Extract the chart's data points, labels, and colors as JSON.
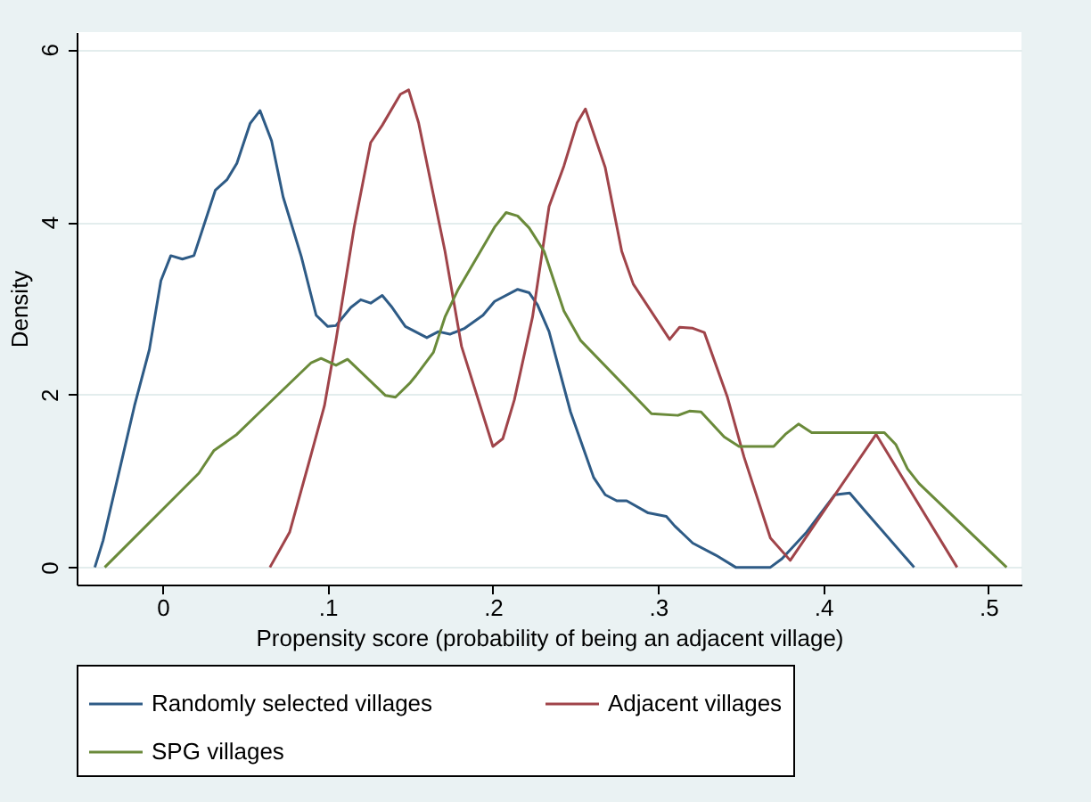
{
  "chart_data": {
    "type": "line",
    "xlabel": "Propensity score (probability of being an adjacent village)",
    "ylabel": "Density",
    "xlim": [
      -0.052,
      0.52
    ],
    "ylim": [
      -0.2,
      6.2
    ],
    "xticks": [
      0,
      {
        "value": 0.1,
        "label": ".1"
      },
      {
        "value": 0.2,
        "label": ".2"
      },
      {
        "value": 0.3,
        "label": ".3"
      },
      {
        "value": 0.4,
        "label": ".4"
      },
      {
        "value": 0.5,
        "label": ".5"
      }
    ],
    "yticks": [
      0,
      2,
      4,
      6
    ],
    "grid": "y",
    "legend": "bottom",
    "line_style": "solid",
    "series": [
      {
        "name": "Randomly selected villages",
        "color": "#2e5b86",
        "x": [
          -0.041,
          -0.036,
          -0.017,
          -0.008,
          -0.001,
          0.005,
          0.012,
          0.019,
          0.032,
          0.039,
          0.045,
          0.053,
          0.059,
          0.066,
          0.073,
          0.084,
          0.093,
          0.1,
          0.105,
          0.114,
          0.12,
          0.126,
          0.133,
          0.139,
          0.147,
          0.16,
          0.167,
          0.174,
          0.183,
          0.194,
          0.201,
          0.215,
          0.222,
          0.227,
          0.234,
          0.247,
          0.261,
          0.268,
          0.275,
          0.281,
          0.294,
          0.305,
          0.31,
          0.321,
          0.335,
          0.347,
          0.368,
          0.375,
          0.39,
          0.407,
          0.416,
          0.425,
          0.455
        ],
        "values": [
          0,
          0.31,
          1.87,
          2.52,
          3.32,
          3.61,
          3.57,
          3.61,
          4.37,
          4.49,
          4.68,
          5.14,
          5.29,
          4.94,
          4.29,
          3.6,
          2.92,
          2.79,
          2.8,
          3.01,
          3.1,
          3.06,
          3.15,
          3.01,
          2.79,
          2.66,
          2.73,
          2.7,
          2.77,
          2.92,
          3.08,
          3.22,
          3.18,
          3.04,
          2.73,
          1.8,
          1.04,
          0.84,
          0.77,
          0.77,
          0.63,
          0.59,
          0.48,
          0.28,
          0.14,
          0,
          0,
          0.1,
          0.41,
          0.84,
          0.86,
          0.66,
          0
        ]
      },
      {
        "name": "Adjacent villages",
        "color": "#a0444a",
        "x": [
          0.065,
          0.07,
          0.077,
          0.089,
          0.098,
          0.105,
          0.116,
          0.126,
          0.133,
          0.144,
          0.149,
          0.155,
          0.171,
          0.181,
          0.2,
          0.206,
          0.213,
          0.224,
          0.234,
          0.243,
          0.251,
          0.256,
          0.268,
          0.278,
          0.285,
          0.307,
          0.313,
          0.321,
          0.328,
          0.342,
          0.352,
          0.368,
          0.38,
          0.432,
          0.481
        ],
        "values": [
          0,
          0.17,
          0.41,
          1.24,
          1.87,
          2.63,
          3.94,
          4.92,
          5.12,
          5.48,
          5.53,
          5.15,
          3.66,
          2.56,
          1.4,
          1.49,
          1.94,
          2.9,
          4.18,
          4.65,
          5.15,
          5.31,
          4.63,
          3.66,
          3.28,
          2.64,
          2.78,
          2.77,
          2.72,
          1.97,
          1.28,
          0.34,
          0.08,
          1.54,
          0
        ]
      },
      {
        "name": "SPG villages",
        "color": "#6a8a3a",
        "x": [
          -0.035,
          0.022,
          0.031,
          0.045,
          0.059,
          0.09,
          0.096,
          0.105,
          0.112,
          0.135,
          0.141,
          0.15,
          0.153,
          0.164,
          0.171,
          0.179,
          0.201,
          0.208,
          0.215,
          0.222,
          0.231,
          0.243,
          0.253,
          0.296,
          0.312,
          0.319,
          0.326,
          0.34,
          0.349,
          0.37,
          0.377,
          0.385,
          0.393,
          0.437,
          0.444,
          0.451,
          0.458,
          0.511
        ],
        "values": [
          0,
          1.09,
          1.35,
          1.54,
          1.8,
          2.37,
          2.42,
          2.34,
          2.41,
          1.99,
          1.97,
          2.14,
          2.21,
          2.49,
          2.9,
          3.22,
          3.94,
          4.11,
          4.07,
          3.93,
          3.66,
          2.97,
          2.63,
          1.78,
          1.76,
          1.81,
          1.8,
          1.51,
          1.4,
          1.4,
          1.54,
          1.66,
          1.56,
          1.56,
          1.42,
          1.14,
          0.97,
          0
        ]
      }
    ]
  }
}
